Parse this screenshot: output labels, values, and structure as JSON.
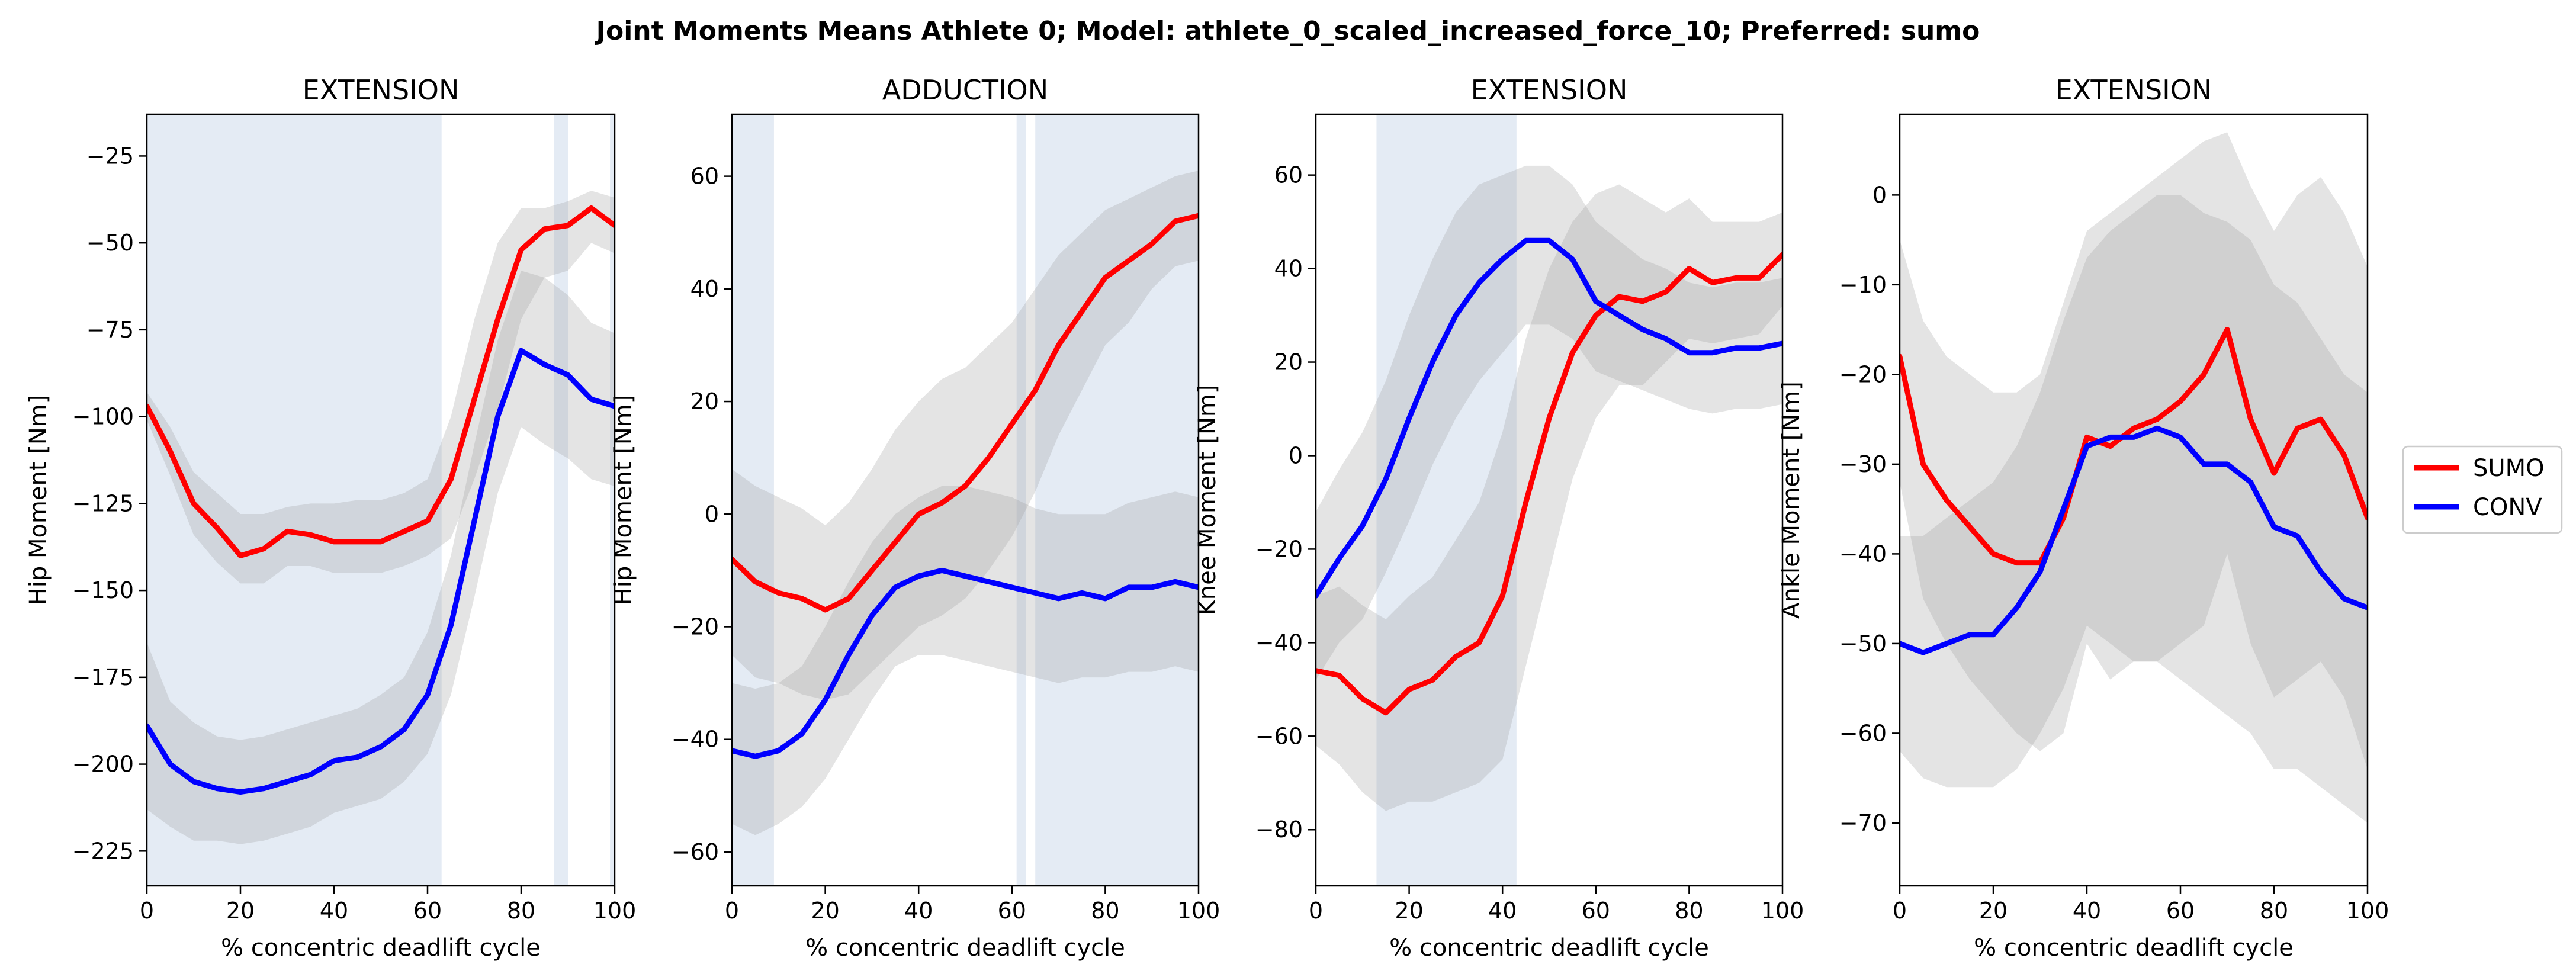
{
  "figure_title": "Joint Moments Means Athlete 0; Model: athlete_0_scaled_increased_force_10; Preferred: sumo",
  "legend": {
    "position": "center-right",
    "entries": [
      {
        "label": "SUMO",
        "color": "#ff0000"
      },
      {
        "label": "CONV",
        "color": "#0000ff"
      }
    ]
  },
  "colors": {
    "sumo": "#ff0000",
    "conv": "#0000ff",
    "std_band": "#9e9e9e",
    "highlight": "#dbe4f0"
  },
  "chart_data": [
    {
      "type": "line",
      "title": "EXTENSION",
      "xlabel": "% concentric deadlift cycle",
      "ylabel": "Hip Moment [Nm]",
      "xlim": [
        0,
        100
      ],
      "ylim": [
        -235,
        -13
      ],
      "xticks": [
        0,
        20,
        40,
        60,
        80,
        100
      ],
      "yticks": [
        -225,
        -200,
        -175,
        -150,
        -125,
        -100,
        -75,
        -50,
        -25
      ],
      "highlight_ranges": [
        [
          0,
          63
        ],
        [
          87,
          90
        ],
        [
          99,
          100
        ]
      ],
      "x": [
        0,
        5,
        10,
        15,
        20,
        25,
        30,
        35,
        40,
        45,
        50,
        55,
        60,
        65,
        70,
        75,
        80,
        85,
        90,
        95,
        100
      ],
      "series": [
        {
          "name": "SUMO",
          "color": "#ff0000",
          "values": [
            -97,
            -110,
            -125,
            -132,
            -140,
            -138,
            -133,
            -134,
            -136,
            -136,
            -136,
            -133,
            -130,
            -118,
            -95,
            -72,
            -52,
            -46,
            -45,
            -40,
            -45
          ],
          "band_upper": [
            -93,
            -103,
            -116,
            -122,
            -128,
            -128,
            -126,
            -125,
            -125,
            -124,
            -124,
            -122,
            -118,
            -100,
            -72,
            -50,
            -40,
            -40,
            -38,
            -35,
            -37
          ],
          "band_lower": [
            -101,
            -117,
            -134,
            -142,
            -148,
            -148,
            -143,
            -143,
            -145,
            -145,
            -145,
            -143,
            -140,
            -135,
            -118,
            -98,
            -72,
            -60,
            -58,
            -50,
            -53
          ]
        },
        {
          "name": "CONV",
          "color": "#0000ff",
          "values": [
            -189,
            -200,
            -205,
            -207,
            -208,
            -207,
            -205,
            -203,
            -199,
            -198,
            -195,
            -190,
            -180,
            -160,
            -130,
            -100,
            -81,
            -85,
            -88,
            -95,
            -97
          ],
          "band_upper": [
            -165,
            -182,
            -188,
            -192,
            -193,
            -192,
            -190,
            -188,
            -186,
            -184,
            -180,
            -175,
            -162,
            -140,
            -108,
            -78,
            -58,
            -60,
            -65,
            -73,
            -76
          ],
          "band_lower": [
            -213,
            -218,
            -222,
            -222,
            -223,
            -222,
            -220,
            -218,
            -214,
            -212,
            -210,
            -205,
            -197,
            -180,
            -152,
            -122,
            -103,
            -108,
            -112,
            -118,
            -120
          ]
        }
      ]
    },
    {
      "type": "line",
      "title": "ADDUCTION",
      "xlabel": "% concentric deadlift cycle",
      "ylabel": "Hip Moment [Nm]",
      "xlim": [
        0,
        100
      ],
      "ylim": [
        -66,
        71
      ],
      "xticks": [
        0,
        20,
        40,
        60,
        80,
        100
      ],
      "yticks": [
        -60,
        -40,
        -20,
        0,
        20,
        40,
        60
      ],
      "highlight_ranges": [
        [
          0,
          9
        ],
        [
          61,
          63
        ],
        [
          65,
          100
        ]
      ],
      "x": [
        0,
        5,
        10,
        15,
        20,
        25,
        30,
        35,
        40,
        45,
        50,
        55,
        60,
        65,
        70,
        75,
        80,
        85,
        90,
        95,
        100
      ],
      "series": [
        {
          "name": "SUMO",
          "color": "#ff0000",
          "values": [
            -8,
            -12,
            -14,
            -15,
            -17,
            -15,
            -10,
            -5,
            0,
            2,
            5,
            10,
            16,
            22,
            30,
            36,
            42,
            45,
            48,
            52,
            53
          ],
          "band_upper": [
            8,
            5,
            3,
            1,
            -2,
            2,
            8,
            15,
            20,
            24,
            26,
            30,
            34,
            40,
            46,
            50,
            54,
            56,
            58,
            60,
            61
          ],
          "band_lower": [
            -25,
            -29,
            -30,
            -32,
            -33,
            -32,
            -28,
            -24,
            -20,
            -18,
            -15,
            -10,
            -4,
            4,
            14,
            22,
            30,
            34,
            40,
            44,
            45
          ]
        },
        {
          "name": "CONV",
          "color": "#0000ff",
          "values": [
            -42,
            -43,
            -42,
            -39,
            -33,
            -25,
            -18,
            -13,
            -11,
            -10,
            -11,
            -12,
            -13,
            -14,
            -15,
            -14,
            -15,
            -13,
            -13,
            -12,
            -13
          ],
          "band_upper": [
            -30,
            -31,
            -30,
            -27,
            -20,
            -12,
            -5,
            0,
            3,
            5,
            5,
            4,
            3,
            1,
            0,
            0,
            0,
            2,
            3,
            4,
            3
          ],
          "band_lower": [
            -55,
            -57,
            -55,
            -52,
            -47,
            -40,
            -33,
            -27,
            -25,
            -25,
            -26,
            -27,
            -28,
            -29,
            -30,
            -29,
            -29,
            -28,
            -28,
            -27,
            -28
          ]
        }
      ]
    },
    {
      "type": "line",
      "title": "EXTENSION",
      "xlabel": "% concentric deadlift cycle",
      "ylabel": "Knee Moment [Nm]",
      "xlim": [
        0,
        100
      ],
      "ylim": [
        -92,
        73
      ],
      "xticks": [
        0,
        20,
        40,
        60,
        80,
        100
      ],
      "yticks": [
        -80,
        -60,
        -40,
        -20,
        0,
        20,
        40,
        60
      ],
      "highlight_ranges": [
        [
          13,
          43
        ]
      ],
      "x": [
        0,
        5,
        10,
        15,
        20,
        25,
        30,
        35,
        40,
        45,
        50,
        55,
        60,
        65,
        70,
        75,
        80,
        85,
        90,
        95,
        100
      ],
      "series": [
        {
          "name": "SUMO",
          "color": "#ff0000",
          "values": [
            -46,
            -47,
            -52,
            -55,
            -50,
            -48,
            -43,
            -40,
            -30,
            -10,
            8,
            22,
            30,
            34,
            33,
            35,
            40,
            37,
            38,
            38,
            43
          ],
          "band_upper": [
            -30,
            -28,
            -32,
            -35,
            -30,
            -26,
            -18,
            -10,
            5,
            25,
            40,
            50,
            56,
            58,
            55,
            52,
            55,
            50,
            50,
            50,
            52
          ],
          "band_lower": [
            -62,
            -66,
            -72,
            -76,
            -74,
            -74,
            -72,
            -70,
            -65,
            -45,
            -25,
            -5,
            8,
            15,
            15,
            20,
            25,
            24,
            25,
            26,
            32
          ]
        },
        {
          "name": "CONV",
          "color": "#0000ff",
          "values": [
            -30,
            -22,
            -15,
            -5,
            8,
            20,
            30,
            37,
            42,
            46,
            46,
            42,
            33,
            30,
            27,
            25,
            22,
            22,
            23,
            23,
            24
          ],
          "band_upper": [
            -12,
            -3,
            5,
            16,
            30,
            42,
            52,
            58,
            60,
            62,
            62,
            58,
            50,
            46,
            42,
            40,
            37,
            36,
            37,
            37,
            38
          ],
          "band_lower": [
            -48,
            -40,
            -35,
            -25,
            -14,
            -2,
            8,
            16,
            22,
            28,
            28,
            25,
            18,
            16,
            14,
            12,
            10,
            9,
            10,
            10,
            11
          ]
        }
      ]
    },
    {
      "type": "line",
      "title": "EXTENSION",
      "xlabel": "% concentric deadlift cycle",
      "ylabel": "Ankle Moment [Nm]",
      "xlim": [
        0,
        100
      ],
      "ylim": [
        -77,
        9
      ],
      "xticks": [
        0,
        20,
        40,
        60,
        80,
        100
      ],
      "yticks": [
        -70,
        -60,
        -50,
        -40,
        -30,
        -20,
        -10,
        0
      ],
      "highlight_ranges": [],
      "x": [
        0,
        5,
        10,
        15,
        20,
        25,
        30,
        35,
        40,
        45,
        50,
        55,
        60,
        65,
        70,
        75,
        80,
        85,
        90,
        95,
        100
      ],
      "series": [
        {
          "name": "SUMO",
          "color": "#ff0000",
          "values": [
            -18,
            -30,
            -34,
            -37,
            -40,
            -41,
            -41,
            -36,
            -27,
            -28,
            -26,
            -25,
            -23,
            -20,
            -15,
            -25,
            -31,
            -26,
            -25,
            -29,
            -36
          ],
          "band_upper": [
            -5,
            -14,
            -18,
            -20,
            -22,
            -22,
            -20,
            -12,
            -4,
            -2,
            0,
            2,
            4,
            6,
            7,
            1,
            -4,
            0,
            2,
            -2,
            -8
          ],
          "band_lower": [
            -32,
            -45,
            -50,
            -54,
            -57,
            -60,
            -62,
            -60,
            -50,
            -54,
            -52,
            -52,
            -50,
            -48,
            -40,
            -50,
            -56,
            -54,
            -52,
            -56,
            -64
          ]
        },
        {
          "name": "CONV",
          "color": "#0000ff",
          "values": [
            -50,
            -51,
            -50,
            -49,
            -49,
            -46,
            -42,
            -35,
            -28,
            -27,
            -27,
            -26,
            -27,
            -30,
            -30,
            -32,
            -37,
            -38,
            -42,
            -45,
            -46
          ],
          "band_upper": [
            -38,
            -38,
            -36,
            -34,
            -32,
            -28,
            -22,
            -14,
            -7,
            -4,
            -2,
            0,
            0,
            -2,
            -3,
            -5,
            -10,
            -12,
            -16,
            -20,
            -22
          ],
          "band_lower": [
            -62,
            -65,
            -66,
            -66,
            -66,
            -64,
            -60,
            -55,
            -48,
            -50,
            -52,
            -52,
            -54,
            -56,
            -58,
            -60,
            -64,
            -64,
            -66,
            -68,
            -70
          ]
        }
      ]
    }
  ]
}
